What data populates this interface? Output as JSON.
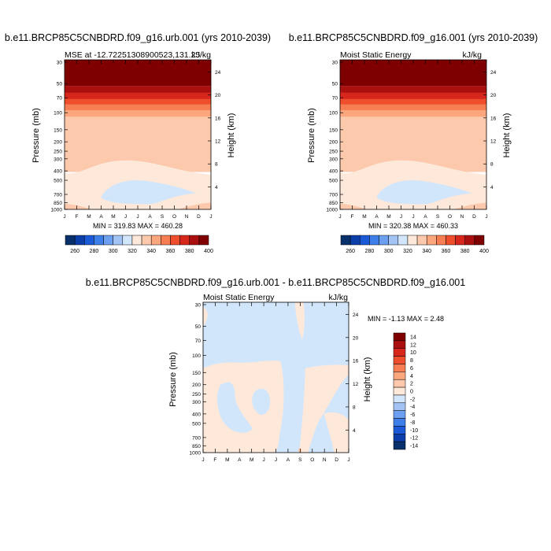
{
  "colors": {
    "seq": [
      "#08306b",
      "#0b3ea8",
      "#1a5ad6",
      "#3d7ee8",
      "#6d9ff0",
      "#a3c3f5",
      "#d2e6fb",
      "#fde8da",
      "#fcc9ac",
      "#fba67d",
      "#f77d52",
      "#ef4e2c",
      "#d7261c",
      "#aa1010",
      "#7f0000"
    ],
    "diff": [
      "#08306b",
      "#0b3ea8",
      "#1a5ad6",
      "#3d7ee8",
      "#6d9ff0",
      "#a3c3f5",
      "#d2e6fb",
      "#fde8da",
      "#fcc9ac",
      "#fba67d",
      "#f77d52",
      "#ef4e2c",
      "#d7261c",
      "#aa1010",
      "#7f0000"
    ]
  },
  "chart_data": [
    {
      "type": "heatmap",
      "title": "b.e11.BRCP85C5CNBDRD.f09_g16.urb.001 (yrs 2010-2039)",
      "left_label": "MSE at -12.72251308900523,131.25",
      "right_label": "kJ/kg",
      "ylabel": "Pressure (mb)",
      "ylabel_right": "Height (km)",
      "x_ticks": [
        "J",
        "F",
        "M",
        "A",
        "M",
        "J",
        "J",
        "A",
        "S",
        "O",
        "N",
        "D",
        "J"
      ],
      "pressure_ticks": [
        "30",
        "50",
        "70",
        "100",
        "150",
        "200",
        "250",
        "300",
        "400",
        "500",
        "700",
        "850",
        "1000"
      ],
      "pressure_values": [
        30,
        50,
        70,
        100,
        150,
        200,
        250,
        300,
        400,
        500,
        700,
        850,
        1000
      ],
      "height_ticks": [
        "24",
        "20",
        "16",
        "12",
        "8",
        "4"
      ],
      "height_values": [
        24,
        20,
        16,
        12,
        8,
        4
      ],
      "min_max": "MIN = 319.83  MAX = 460.28",
      "colorbar_labels": [
        "260",
        "280",
        "300",
        "320",
        "340",
        "360",
        "380",
        "400"
      ],
      "colorbar_levels": [
        250,
        260,
        270,
        280,
        290,
        300,
        310,
        320,
        330,
        340,
        350,
        360,
        370,
        380,
        390,
        400
      ],
      "range": [
        319.83,
        460.28
      ]
    },
    {
      "type": "heatmap",
      "title": "b.e11.BRCP85C5CNBDRD.f09_g16.001 (yrs 2010-2039)",
      "left_label": "Moist Static Energy",
      "right_label": "kJ/kg",
      "ylabel": "Pressure (mb)",
      "ylabel_right": "Height (km)",
      "x_ticks": [
        "J",
        "F",
        "M",
        "A",
        "M",
        "J",
        "J",
        "A",
        "S",
        "O",
        "N",
        "D",
        "J"
      ],
      "pressure_ticks": [
        "30",
        "50",
        "70",
        "100",
        "150",
        "200",
        "250",
        "300",
        "400",
        "500",
        "700",
        "850",
        "1000"
      ],
      "pressure_values": [
        30,
        50,
        70,
        100,
        150,
        200,
        250,
        300,
        400,
        500,
        700,
        850,
        1000
      ],
      "height_ticks": [
        "24",
        "20",
        "16",
        "12",
        "8",
        "4"
      ],
      "height_values": [
        24,
        20,
        16,
        12,
        8,
        4
      ],
      "min_max": "MIN = 320.38  MAX = 460.33",
      "colorbar_labels": [
        "260",
        "280",
        "300",
        "320",
        "340",
        "360",
        "380",
        "400"
      ],
      "colorbar_levels": [
        250,
        260,
        270,
        280,
        290,
        300,
        310,
        320,
        330,
        340,
        350,
        360,
        370,
        380,
        390,
        400
      ],
      "range": [
        320.38,
        460.33
      ]
    },
    {
      "type": "heatmap",
      "title": "b.e11.BRCP85C5CNBDRD.f09_g16.urb.001 - b.e11.BRCP85C5CNBDRD.f09_g16.001",
      "left_label": "Moist Static Energy",
      "right_label": "kJ/kg",
      "ylabel": "Pressure (mb)",
      "ylabel_right": "Height (km)",
      "x_ticks": [
        "J",
        "F",
        "M",
        "A",
        "M",
        "J",
        "J",
        "A",
        "S",
        "O",
        "N",
        "D",
        "J"
      ],
      "pressure_ticks": [
        "30",
        "50",
        "70",
        "100",
        "150",
        "200",
        "250",
        "300",
        "400",
        "500",
        "700",
        "850",
        "1000"
      ],
      "pressure_values": [
        30,
        50,
        70,
        100,
        150,
        200,
        250,
        300,
        400,
        500,
        700,
        850,
        1000
      ],
      "height_ticks": [
        "24",
        "20",
        "16",
        "12",
        "8",
        "4"
      ],
      "height_values": [
        24,
        20,
        16,
        12,
        8,
        4
      ],
      "min_max": "MIN =  -1.13 MAX =   2.48",
      "colorbar_labels": [
        "14",
        "12",
        "10",
        "8",
        "6",
        "4",
        "2",
        "0",
        "-2",
        "-4",
        "-6",
        "-8",
        "-10",
        "-12",
        "-14"
      ],
      "colorbar_levels": [
        -14,
        -12,
        -10,
        -8,
        -6,
        -4,
        -2,
        0,
        2,
        4,
        6,
        8,
        10,
        12,
        14
      ],
      "range": [
        -1.13,
        2.48
      ]
    }
  ]
}
